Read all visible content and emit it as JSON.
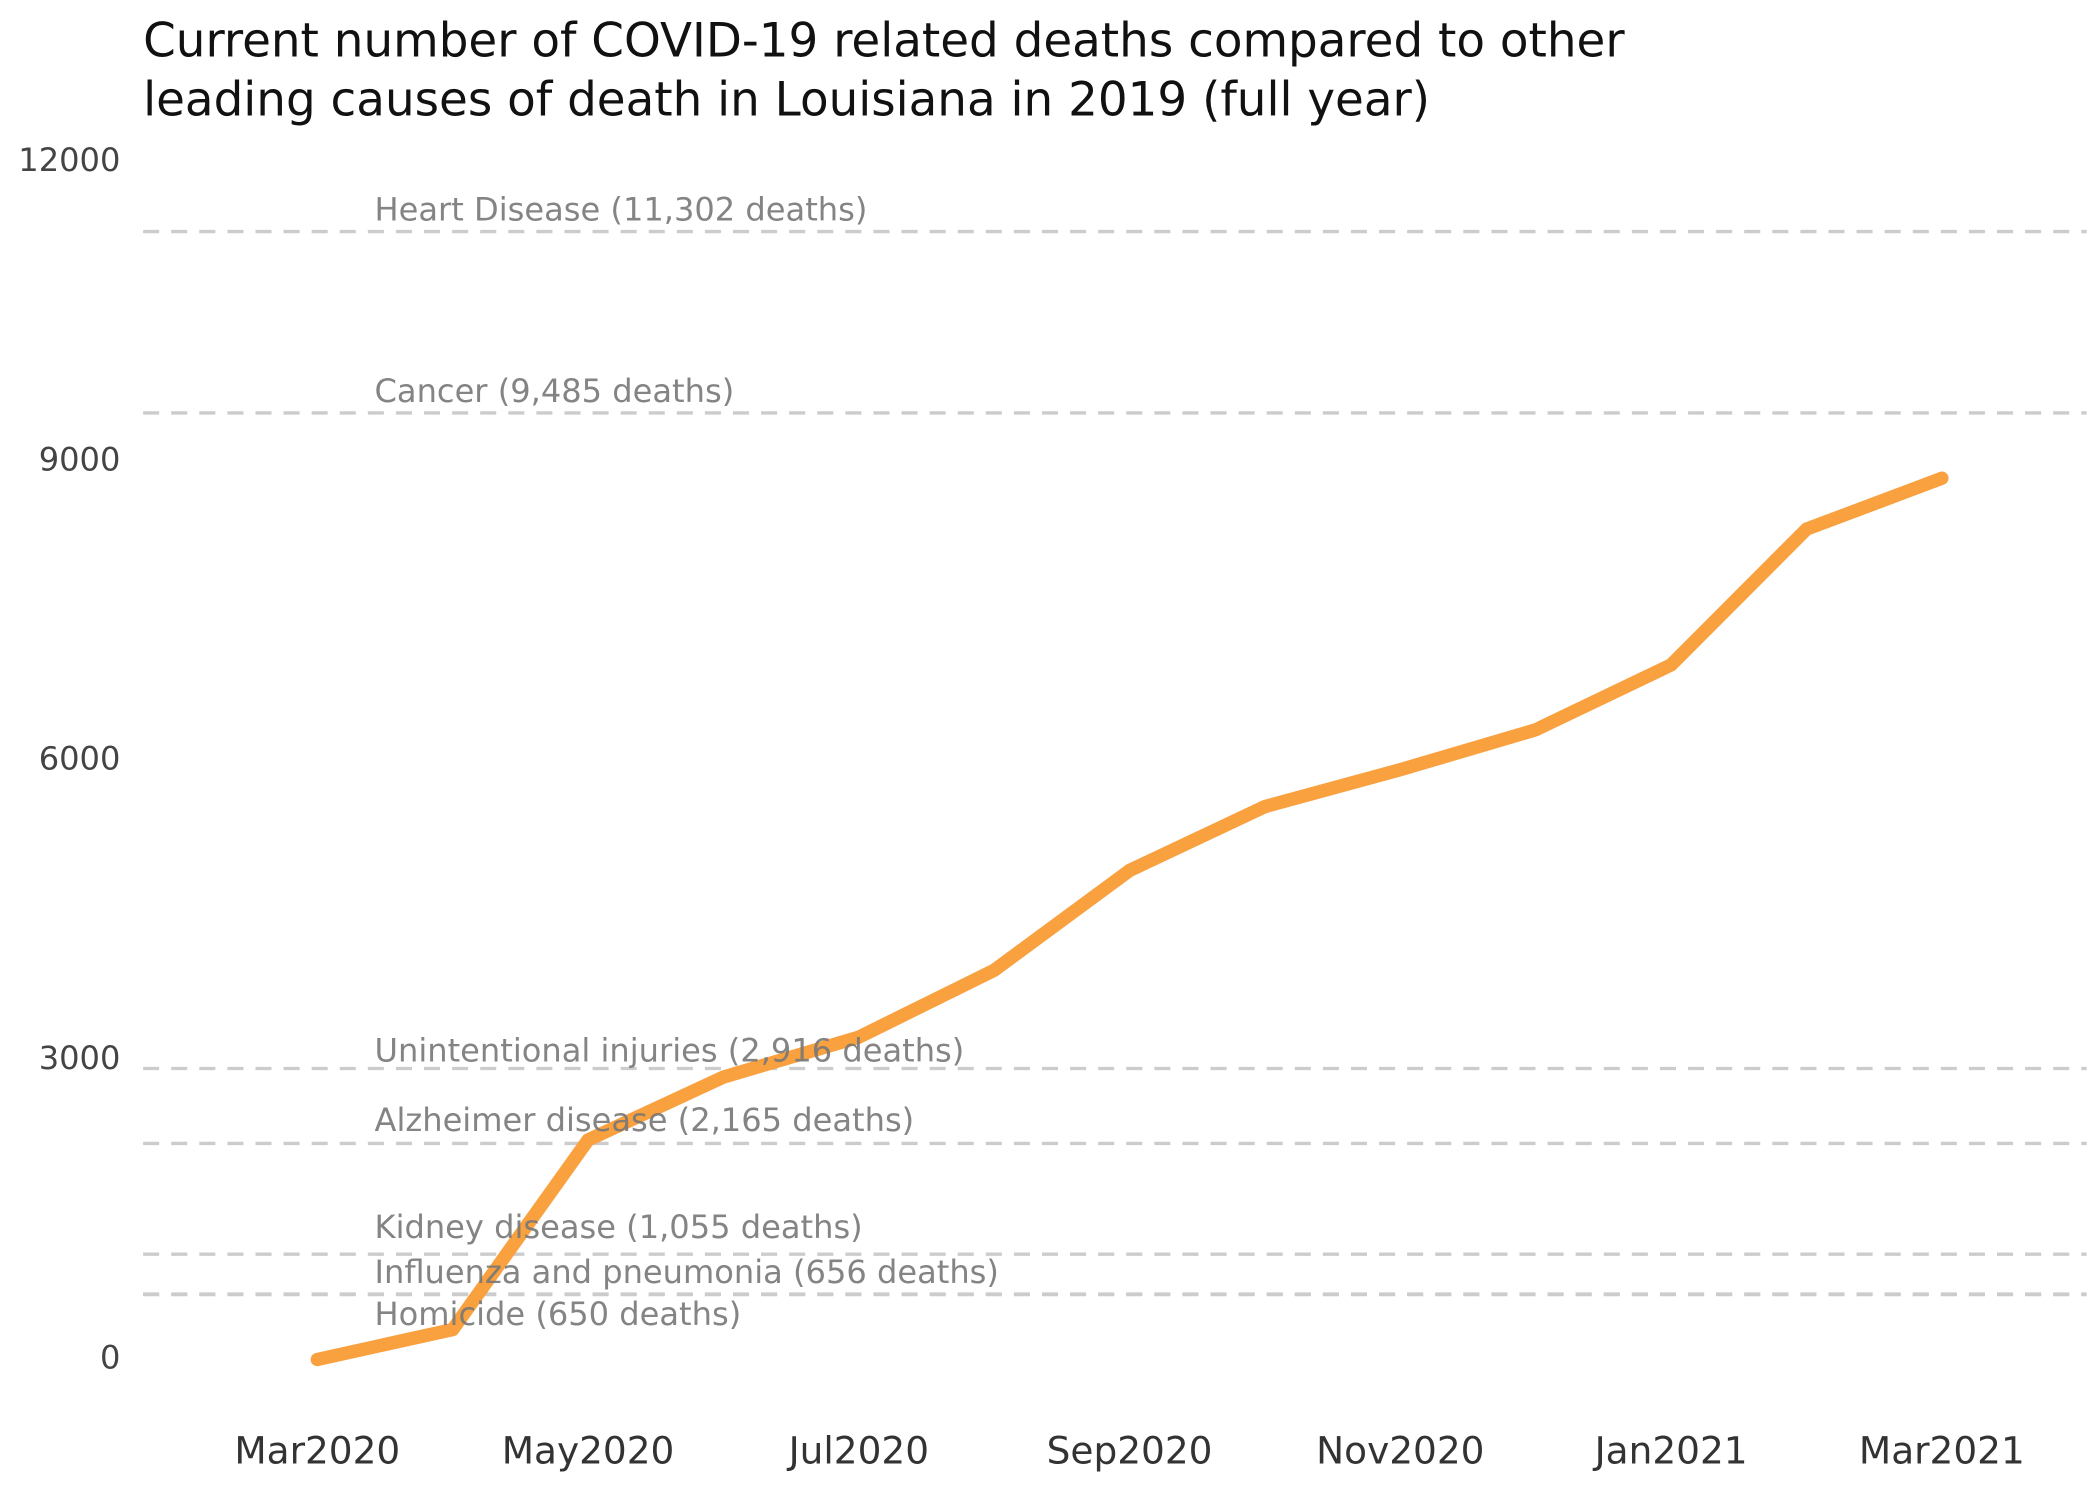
{
  "chart_data": {
    "type": "line",
    "title": [
      "Current number of COVID-19 related deaths compared to other",
      "leading causes of death in Louisiana in 2019 (full year)"
    ],
    "x": [
      "2020-03",
      "2020-04",
      "2020-05",
      "2020-06",
      "2020-07",
      "2020-08",
      "2020-09",
      "2020-10",
      "2020-11",
      "2020-12",
      "2021-01",
      "2021-02",
      "2021-03"
    ],
    "series": [
      {
        "name": "COVID-19 deaths",
        "color": "#f9a03f",
        "values": [
          0,
          300,
          2200,
          2830,
          3230,
          3900,
          4900,
          5540,
          5910,
          6310,
          6960,
          8320,
          8830
        ]
      }
    ],
    "reference_lines": [
      {
        "label": "Heart Disease (11,302 deaths)",
        "value": 11302
      },
      {
        "label": "Cancer (9,485 deaths)",
        "value": 9485
      },
      {
        "label": "Unintentional injuries (2,916 deaths)",
        "value": 2916
      },
      {
        "label": "Alzheimer disease (2,165 deaths)",
        "value": 2165
      },
      {
        "label": "Kidney disease (1,055 deaths)",
        "value": 1055
      },
      {
        "label": "Influenza and pneumonia (656 deaths)",
        "value": 656
      },
      {
        "label": "Homicide (650 deaths)",
        "value": 650
      }
    ],
    "reference_color": "#cccccc",
    "xlim": [
      "2020-02",
      "2021-04"
    ],
    "xticks": [
      {
        "value": "2020-03",
        "label": "Mar2020"
      },
      {
        "value": "2020-05",
        "label": "May2020"
      },
      {
        "value": "2020-07",
        "label": "Jul2020"
      },
      {
        "value": "2020-09",
        "label": "Sep2020"
      },
      {
        "value": "2020-11",
        "label": "Nov2020"
      },
      {
        "value": "2021-01",
        "label": "Jan2021"
      },
      {
        "value": "2021-03",
        "label": "Mar2021"
      }
    ],
    "ylim": [
      0,
      12000
    ],
    "yticks": [
      0,
      3000,
      6000,
      9000,
      12000
    ],
    "grid": false
  }
}
